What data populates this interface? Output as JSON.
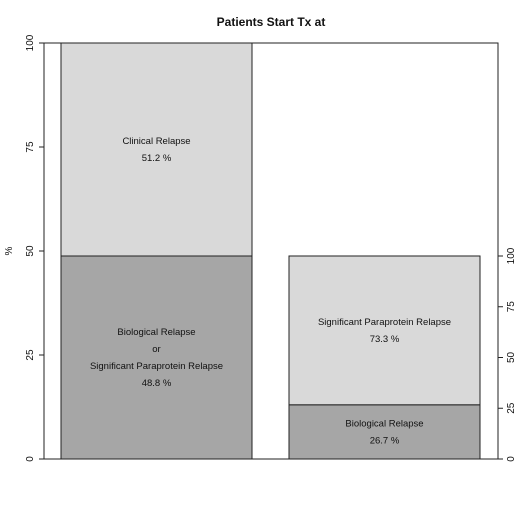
{
  "chart_data": {
    "type": "bar",
    "title": "Patients Start Tx at",
    "ylabel": "%",
    "ylim": [
      0,
      100
    ],
    "left_ticks": [
      "0",
      "25",
      "50",
      "75",
      "100"
    ],
    "right_ticks": [
      "0",
      "25",
      "50",
      "75",
      "100"
    ],
    "grid": false,
    "bars": [
      {
        "total": 100,
        "segments": [
          {
            "lines": [
              "Biological Relapse",
              "or",
              "Significant Paraprotein Relapse"
            ],
            "pct": "48.8 %",
            "value": 48.8,
            "color": "#a6a6a6"
          },
          {
            "lines": [
              "Clinical Relapse"
            ],
            "pct": "51.2 %",
            "value": 51.2,
            "color": "#d9d9d9"
          }
        ]
      },
      {
        "total": 48.8,
        "segments": [
          {
            "lines": [
              "Biological Relapse"
            ],
            "pct": "26.7 %",
            "value": 26.7,
            "color": "#a6a6a6"
          },
          {
            "lines": [
              "Significant Paraprotein Relapse"
            ],
            "pct": "73.3 %",
            "value": 73.3,
            "color": "#d9d9d9"
          }
        ]
      }
    ]
  }
}
